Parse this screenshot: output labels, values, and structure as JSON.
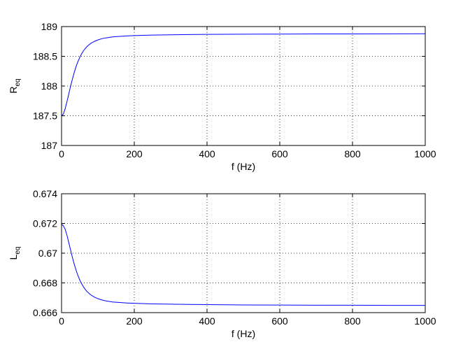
{
  "chart_data": [
    {
      "type": "line",
      "xlabel": "f (Hz)",
      "ylabel": "R",
      "ylabel_subscript": "eq",
      "xlim": [
        0,
        1000
      ],
      "ylim": [
        187,
        189
      ],
      "xticks": [
        0,
        200,
        400,
        600,
        800,
        1000
      ],
      "yticks": [
        187,
        187.5,
        188,
        188.5,
        189
      ],
      "xtick_labels": [
        "0",
        "200",
        "400",
        "600",
        "800",
        "1000"
      ],
      "ytick_labels": [
        "187",
        "187.5",
        "188",
        "188.5",
        "189"
      ],
      "grid": true,
      "line_color": "#0000ff",
      "series": [
        {
          "x": [
            0,
            5,
            10,
            15,
            20,
            25,
            30,
            35,
            40,
            45,
            50,
            55,
            60,
            65,
            70,
            80,
            90,
            100,
            110,
            120,
            140,
            160,
            180,
            200,
            250,
            300,
            350,
            400,
            500,
            600,
            700,
            800,
            900,
            1000
          ],
          "y": [
            187.5,
            187.53,
            187.62,
            187.74,
            187.87,
            188.0,
            188.12,
            188.23,
            188.33,
            188.41,
            188.48,
            188.54,
            188.59,
            188.63,
            188.665,
            188.715,
            188.75,
            188.775,
            188.795,
            188.808,
            188.826,
            188.836,
            188.843,
            188.848,
            188.857,
            188.862,
            188.866,
            188.869,
            188.872,
            188.874,
            188.876,
            188.877,
            188.878,
            188.879
          ]
        }
      ]
    },
    {
      "type": "line",
      "xlabel": "f (Hz)",
      "ylabel": "L",
      "ylabel_subscript": "eq",
      "xlim": [
        0,
        1000
      ],
      "ylim": [
        0.666,
        0.674
      ],
      "xticks": [
        0,
        200,
        400,
        600,
        800,
        1000
      ],
      "yticks": [
        0.666,
        0.668,
        0.67,
        0.672,
        0.674
      ],
      "xtick_labels": [
        "0",
        "200",
        "400",
        "600",
        "800",
        "1000"
      ],
      "ytick_labels": [
        "0.666",
        "0.668",
        "0.67",
        "0.672",
        "0.674"
      ],
      "grid": true,
      "line_color": "#0000ff",
      "series": [
        {
          "x": [
            0,
            5,
            10,
            15,
            20,
            25,
            30,
            35,
            40,
            45,
            50,
            55,
            60,
            65,
            70,
            80,
            90,
            100,
            110,
            120,
            140,
            160,
            180,
            200,
            250,
            300,
            350,
            400,
            500,
            600,
            700,
            800,
            900,
            1000
          ],
          "y": [
            0.67195,
            0.67185,
            0.6716,
            0.6712,
            0.6707,
            0.6702,
            0.6697,
            0.66925,
            0.66885,
            0.6685,
            0.6682,
            0.66795,
            0.66775,
            0.66757,
            0.66742,
            0.6672,
            0.66705,
            0.66694,
            0.66686,
            0.6668,
            0.66672,
            0.66668,
            0.66665,
            0.66663,
            0.66659,
            0.66657,
            0.66655,
            0.66654,
            0.66652,
            0.66651,
            0.6665,
            0.6665,
            0.66649,
            0.66649
          ]
        }
      ]
    }
  ]
}
